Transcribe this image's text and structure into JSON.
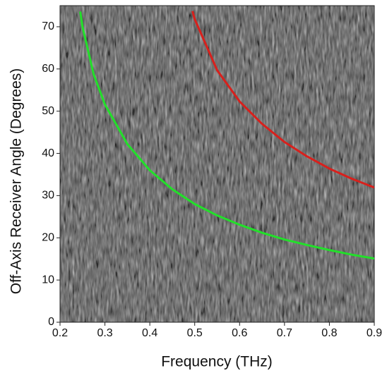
{
  "chart_data": {
    "type": "line",
    "x_label": "Frequency (THz)",
    "y_label": "Off-Axis Receiver Angle (Degrees)",
    "xlim": [
      0.2,
      0.9
    ],
    "ylim": [
      0,
      75
    ],
    "xticks": [
      0.2,
      0.3,
      0.4,
      0.5,
      0.6,
      0.7,
      0.8,
      0.9
    ],
    "yticks": [
      0,
      10,
      20,
      30,
      40,
      50,
      60,
      70
    ],
    "series": [
      {
        "color": "#22e02a",
        "x": [
          0.245,
          0.25,
          0.275,
          0.3,
          0.35,
          0.4,
          0.45,
          0.5,
          0.55,
          0.6,
          0.65,
          0.7,
          0.75,
          0.8,
          0.85,
          0.9
        ],
        "values": [
          73.6,
          70.0,
          58.7,
          51.6,
          42.2,
          36.0,
          31.5,
          28.0,
          25.3,
          23.1,
          21.2,
          19.6,
          18.3,
          17.1,
          16.0,
          15.1
        ]
      },
      {
        "color": "#d8201c",
        "x": [
          0.495,
          0.5,
          0.55,
          0.6,
          0.65,
          0.7,
          0.75,
          0.8,
          0.85,
          0.9
        ],
        "values": [
          73.7,
          71.8,
          59.7,
          52.3,
          47.0,
          42.7,
          39.3,
          36.4,
          34.0,
          31.9
        ]
      }
    ]
  }
}
